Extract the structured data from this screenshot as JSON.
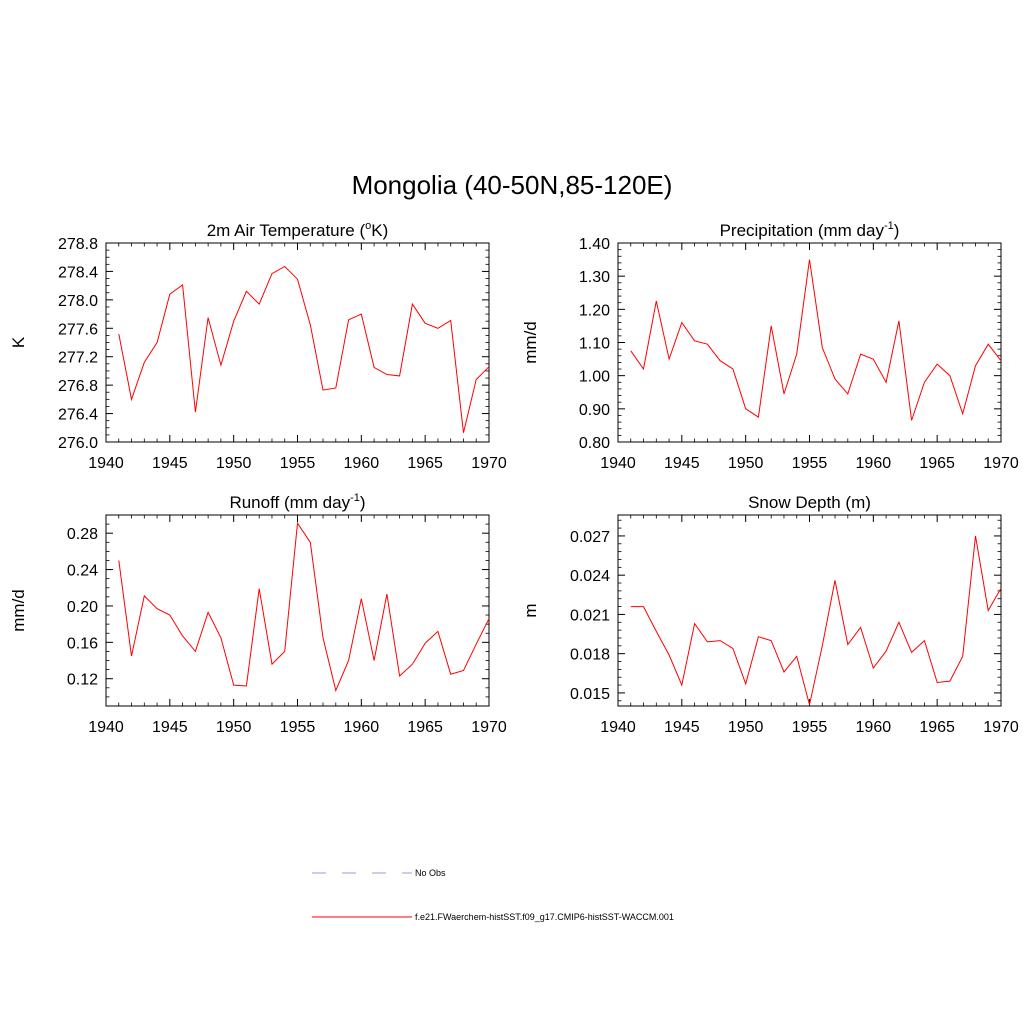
{
  "main_title": "Mongolia (40-50N,85-120E)",
  "legend": [
    {
      "label": "No Obs",
      "color": "#9999dd",
      "dash": true
    },
    {
      "label": "f.e21.FWaerchem-histSST.f09_g17.CMIP6-histSST-WACCM.001",
      "color": "#ff0000",
      "dash": false
    }
  ],
  "chart_data": [
    {
      "type": "line",
      "title": "2m Air Temperature (",
      "title_sup": "o",
      "title_after": "K)",
      "ylabel": "K",
      "xlim": [
        1940,
        1970
      ],
      "ylim": [
        276.0,
        278.8
      ],
      "xticks": [
        1940,
        1945,
        1950,
        1955,
        1960,
        1965,
        1970
      ],
      "yticks": [
        "276.0",
        "276.4",
        "276.8",
        "277.2",
        "277.6",
        "278.0",
        "278.4",
        "278.8"
      ],
      "ytick_values": [
        276.0,
        276.4,
        276.8,
        277.2,
        277.6,
        278.0,
        278.4,
        278.8
      ],
      "yminor_step": 0.1,
      "series": [
        {
          "color": "#ff0000",
          "x": [
            1941,
            1942,
            1943,
            1944,
            1945,
            1946,
            1947,
            1948,
            1949,
            1950,
            1951,
            1952,
            1953,
            1954,
            1955,
            1956,
            1957,
            1958,
            1959,
            1960,
            1961,
            1962,
            1963,
            1964,
            1965,
            1966,
            1967,
            1968,
            1969,
            1970
          ],
          "values": [
            277.52,
            276.6,
            277.12,
            277.4,
            278.08,
            278.21,
            276.42,
            277.75,
            277.08,
            277.7,
            278.12,
            277.94,
            278.37,
            278.47,
            278.29,
            277.65,
            276.73,
            276.76,
            277.72,
            277.8,
            277.05,
            276.95,
            276.93,
            277.94,
            277.67,
            277.6,
            277.71,
            276.13,
            276.88,
            277.06
          ]
        }
      ]
    },
    {
      "type": "line",
      "title": "Precipitation (mm day",
      "title_sup": "-1",
      "title_after": ")",
      "ylabel": "mm/d",
      "xlim": [
        1940,
        1970
      ],
      "ylim": [
        0.8,
        1.4
      ],
      "xticks": [
        1940,
        1945,
        1950,
        1955,
        1960,
        1965,
        1970
      ],
      "yticks": [
        "0.80",
        "0.90",
        "1.00",
        "1.10",
        "1.20",
        "1.30",
        "1.40"
      ],
      "ytick_values": [
        0.8,
        0.9,
        1.0,
        1.1,
        1.2,
        1.3,
        1.4
      ],
      "yminor_step": 0.02,
      "series": [
        {
          "color": "#ff0000",
          "x": [
            1941,
            1942,
            1943,
            1944,
            1945,
            1946,
            1947,
            1948,
            1949,
            1950,
            1951,
            1952,
            1953,
            1954,
            1955,
            1956,
            1957,
            1958,
            1959,
            1960,
            1961,
            1962,
            1963,
            1964,
            1965,
            1966,
            1967,
            1968,
            1969,
            1970
          ],
          "values": [
            1.075,
            1.02,
            1.225,
            1.05,
            1.16,
            1.105,
            1.095,
            1.045,
            1.02,
            0.9,
            0.875,
            1.15,
            0.945,
            1.065,
            1.35,
            1.085,
            0.99,
            0.945,
            1.065,
            1.05,
            0.98,
            1.165,
            0.865,
            0.98,
            1.035,
            1.0,
            0.885,
            1.03,
            1.095,
            1.045
          ]
        }
      ]
    },
    {
      "type": "line",
      "title": "Runoff (mm day",
      "title_sup": "-1",
      "title_after": ")",
      "ylabel": "mm/d",
      "xlim": [
        1940,
        1970
      ],
      "ylim": [
        0.09,
        0.3
      ],
      "xticks": [
        1940,
        1945,
        1950,
        1955,
        1960,
        1965,
        1970
      ],
      "yticks": [
        "0.12",
        "0.16",
        "0.20",
        "0.24",
        "0.28"
      ],
      "ytick_values": [
        0.12,
        0.16,
        0.2,
        0.24,
        0.28
      ],
      "yminor_step": 0.01,
      "series": [
        {
          "color": "#ff0000",
          "x": [
            1941,
            1942,
            1943,
            1944,
            1945,
            1946,
            1947,
            1948,
            1949,
            1950,
            1951,
            1952,
            1953,
            1954,
            1955,
            1956,
            1957,
            1958,
            1959,
            1960,
            1961,
            1962,
            1963,
            1964,
            1965,
            1966,
            1967,
            1968,
            1969,
            1970
          ],
          "values": [
            0.25,
            0.145,
            0.211,
            0.197,
            0.19,
            0.167,
            0.15,
            0.193,
            0.165,
            0.113,
            0.112,
            0.219,
            0.136,
            0.15,
            0.291,
            0.27,
            0.165,
            0.107,
            0.14,
            0.208,
            0.14,
            0.213,
            0.123,
            0.136,
            0.159,
            0.172,
            0.125,
            0.129,
            0.158,
            0.186
          ]
        }
      ]
    },
    {
      "type": "line",
      "title": "Snow Depth (m)",
      "title_sup": "",
      "title_after": "",
      "ylabel": "m",
      "xlim": [
        1940,
        1970
      ],
      "ylim": [
        0.014,
        0.0286
      ],
      "xticks": [
        1940,
        1945,
        1950,
        1955,
        1960,
        1965,
        1970
      ],
      "yticks": [
        "0.015",
        "0.018",
        "0.021",
        "0.024",
        "0.027"
      ],
      "ytick_values": [
        0.015,
        0.018,
        0.021,
        0.024,
        0.027
      ],
      "yminor_step": 0.0006,
      "series": [
        {
          "color": "#ff0000",
          "x": [
            1941,
            1942,
            1943,
            1944,
            1945,
            1946,
            1947,
            1948,
            1949,
            1950,
            1951,
            1952,
            1953,
            1954,
            1955,
            1956,
            1957,
            1958,
            1959,
            1960,
            1961,
            1962,
            1963,
            1964,
            1965,
            1966,
            1967,
            1968,
            1969,
            1970
          ],
          "values": [
            0.0216,
            0.0216,
            0.0197,
            0.0179,
            0.0156,
            0.0203,
            0.0189,
            0.019,
            0.0184,
            0.0157,
            0.0193,
            0.019,
            0.0166,
            0.0178,
            0.0141,
            0.0186,
            0.0236,
            0.0187,
            0.02,
            0.0169,
            0.0182,
            0.0204,
            0.0181,
            0.019,
            0.0158,
            0.0159,
            0.0178,
            0.027,
            0.0213,
            0.023
          ]
        }
      ]
    }
  ]
}
